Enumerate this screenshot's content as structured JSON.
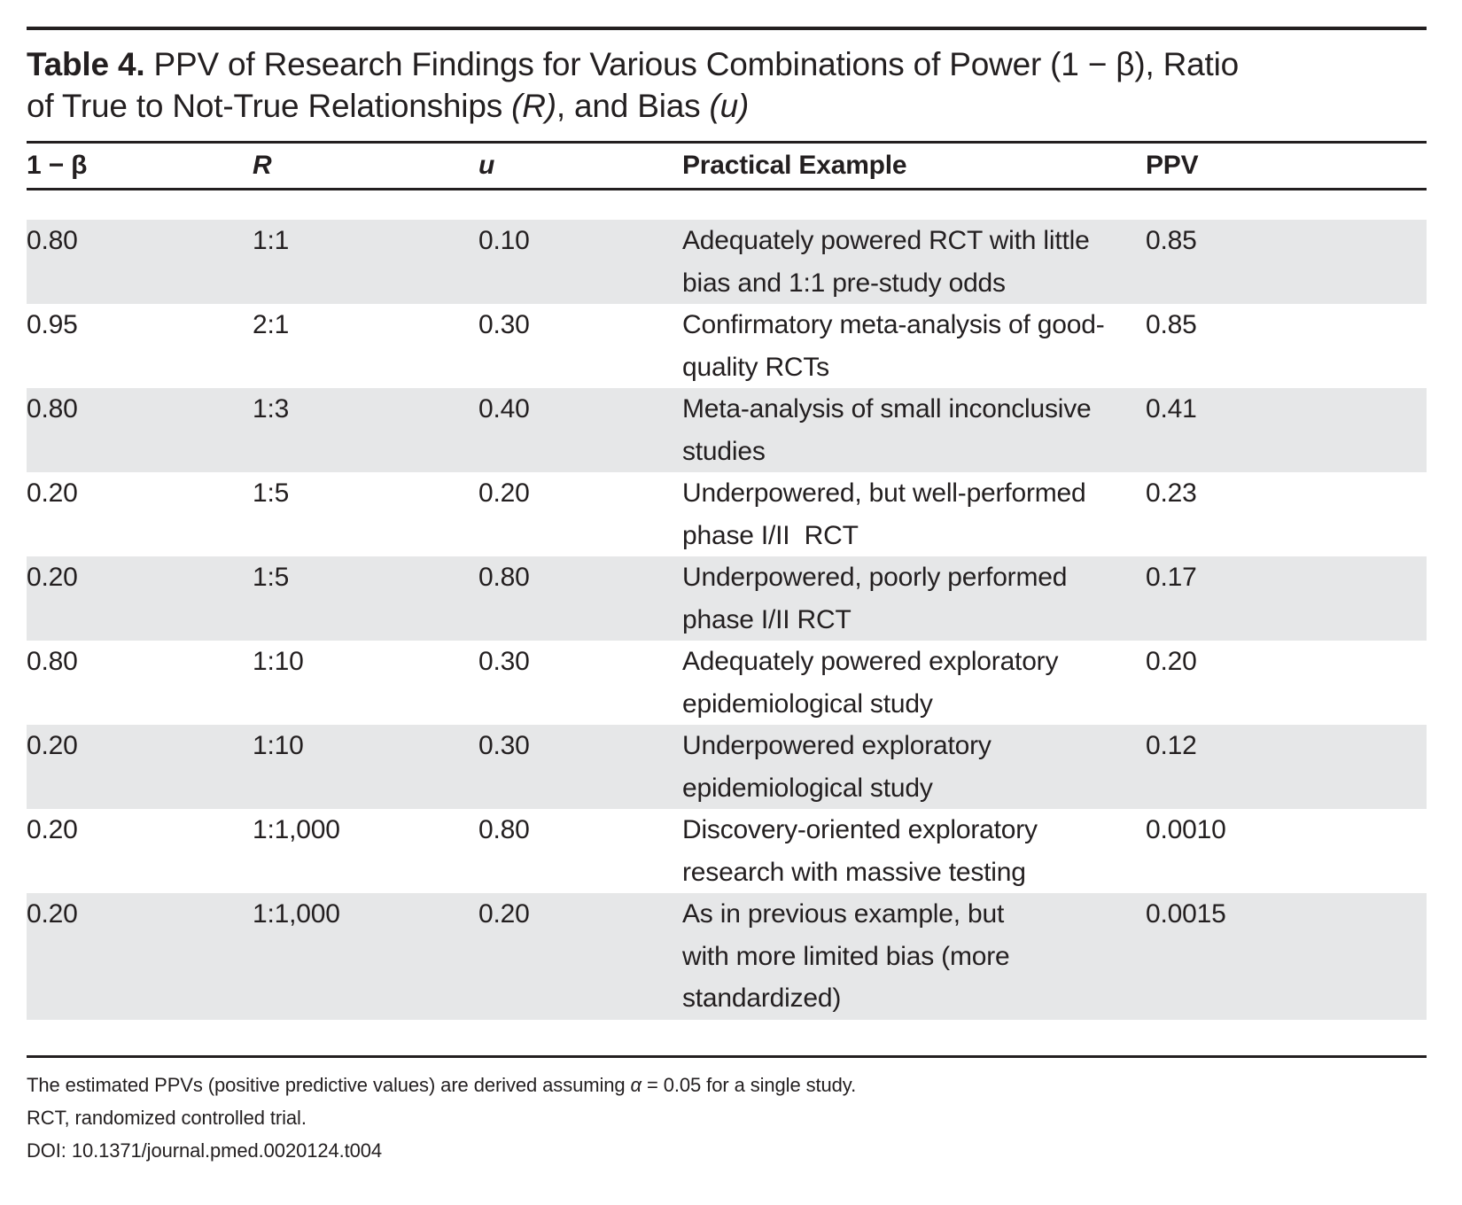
{
  "caption": {
    "label": "Table 4.",
    "line1_rest": " PPV of Research Findings for Various Combinations of Power (1 − β), Ratio",
    "line2_part1": "of True to Not-True Relationships ",
    "line2_r_italic": "(R)",
    "line2_part2": ", and Bias ",
    "line2_u_italic": "(u)"
  },
  "columns": {
    "power": "1 − β",
    "r": "R",
    "u": "u",
    "example": "Practical Example",
    "ppv": "PPV"
  },
  "rows": [
    {
      "power": "0.80",
      "r": "1:1",
      "u": "0.10",
      "example": "Adequately powered RCT with little\nbias and 1:1 pre-study odds",
      "ppv": "0.85"
    },
    {
      "power": "0.95",
      "r": "2:1",
      "u": "0.30",
      "example": "Confirmatory meta-analysis of good-\nquality RCTs",
      "ppv": "0.85"
    },
    {
      "power": "0.80",
      "r": "1:3",
      "u": "0.40",
      "example": "Meta-analysis of small inconclusive\nstudies",
      "ppv": "0.41"
    },
    {
      "power": "0.20",
      "r": "1:5",
      "u": "0.20",
      "example": "Underpowered, but well-performed\nphase I/II  RCT",
      "ppv": "0.23"
    },
    {
      "power": "0.20",
      "r": "1:5",
      "u": "0.80",
      "example": "Underpowered, poorly performed\nphase I/II RCT",
      "ppv": "0.17"
    },
    {
      "power": "0.80",
      "r": "1:10",
      "u": "0.30",
      "example": "Adequately powered exploratory\nepidemiological study",
      "ppv": "0.20"
    },
    {
      "power": "0.20",
      "r": "1:10",
      "u": "0.30",
      "example": "Underpowered exploratory\nepidemiological study",
      "ppv": "0.12"
    },
    {
      "power": "0.20",
      "r": "1:1,000",
      "u": "0.80",
      "example": "Discovery-oriented exploratory\nresearch with massive testing",
      "ppv": "0.0010"
    },
    {
      "power": "0.20",
      "r": "1:1,000",
      "u": "0.20",
      "example": "As in previous example, but\nwith more limited bias (more\nstandardized)",
      "ppv": "0.0015"
    }
  ],
  "footnotes": {
    "line1_pre": "The estimated PPVs (positive predictive values) are derived assuming ",
    "alpha": "α",
    "line1_post": " = 0.05 for a single study.",
    "line2": "RCT, randomized controlled trial.",
    "line3": "DOI: 10.1371/journal.pmed.0020124.t004"
  },
  "colors": {
    "text": "#231f20",
    "row_shade": "#e6e7e8",
    "background": "#ffffff"
  }
}
